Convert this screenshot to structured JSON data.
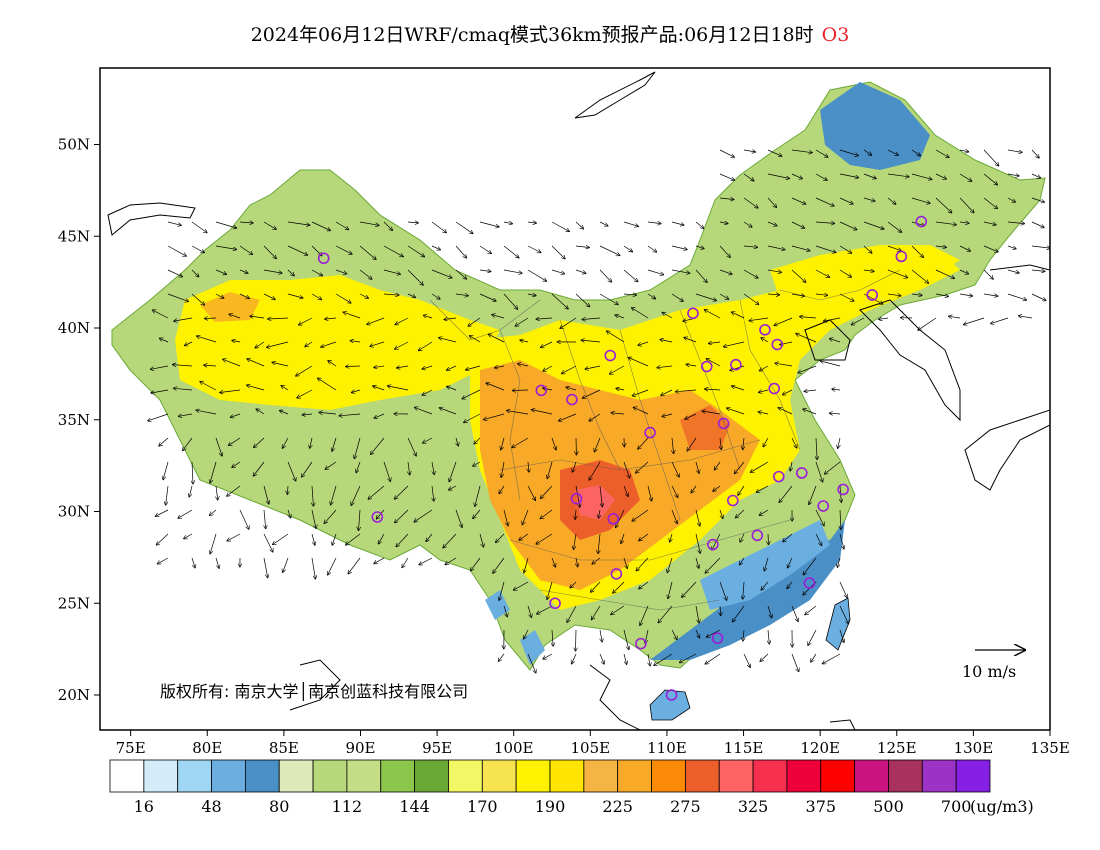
{
  "title": {
    "main": "2024年06月12日WRF/cmaq模式36km预报产品:06月12日18时",
    "species": "O3"
  },
  "axes": {
    "lon_labels": [
      "75E",
      "80E",
      "85E",
      "90E",
      "95E",
      "100E",
      "105E",
      "110E",
      "115E",
      "120E",
      "125E",
      "130E",
      "135E"
    ],
    "lat_labels": [
      "20N",
      "25N",
      "30N",
      "35N",
      "40N",
      "45N",
      "50N"
    ]
  },
  "wind_scale": {
    "label": "10 m/s"
  },
  "copyright": "版权所有: 南京大学│南京创蓝科技有限公司",
  "colorbar": {
    "colors": [
      "#ffffff",
      "#d2ecfa",
      "#9fd6f3",
      "#6bafe0",
      "#4a8fc6",
      "#dfe8b8",
      "#b6d77a",
      "#c3de85",
      "#8cc64d",
      "#6aa936",
      "#f2f865",
      "#f6e350",
      "#fff200",
      "#ffe400",
      "#f6b445",
      "#f8a928",
      "#fb8a08",
      "#ed5f2a",
      "#fc6464",
      "#f62f4f",
      "#ee003a",
      "#fe0000",
      "#cb1380",
      "#a8325d",
      "#9d32c6",
      "#8620e4"
    ],
    "labels": [
      "16",
      "48",
      "80",
      "112",
      "144",
      "170",
      "190",
      "225",
      "275",
      "325",
      "375",
      "500",
      "700"
    ],
    "unit": "(ug/m3)"
  },
  "stations": [
    {
      "lon": 87.6,
      "lat": 43.8
    },
    {
      "lon": 91.1,
      "lat": 29.7
    },
    {
      "lon": 101.8,
      "lat": 36.6
    },
    {
      "lon": 103.8,
      "lat": 36.1
    },
    {
      "lon": 106.3,
      "lat": 38.5
    },
    {
      "lon": 104.1,
      "lat": 30.7
    },
    {
      "lon": 106.5,
      "lat": 29.6
    },
    {
      "lon": 106.7,
      "lat": 26.6
    },
    {
      "lon": 102.7,
      "lat": 25.0
    },
    {
      "lon": 108.3,
      "lat": 22.8
    },
    {
      "lon": 110.3,
      "lat": 20.0
    },
    {
      "lon": 113.3,
      "lat": 23.1
    },
    {
      "lon": 113.0,
      "lat": 28.2
    },
    {
      "lon": 114.3,
      "lat": 30.6
    },
    {
      "lon": 115.9,
      "lat": 28.7
    },
    {
      "lon": 119.3,
      "lat": 26.1
    },
    {
      "lon": 120.2,
      "lat": 30.3
    },
    {
      "lon": 121.5,
      "lat": 31.2
    },
    {
      "lon": 118.8,
      "lat": 32.1
    },
    {
      "lon": 117.3,
      "lat": 31.9
    },
    {
      "lon": 113.7,
      "lat": 34.8
    },
    {
      "lon": 117.0,
      "lat": 36.7
    },
    {
      "lon": 114.5,
      "lat": 38.0
    },
    {
      "lon": 112.6,
      "lat": 37.9
    },
    {
      "lon": 108.9,
      "lat": 34.3
    },
    {
      "lon": 116.4,
      "lat": 39.9
    },
    {
      "lon": 117.2,
      "lat": 39.1
    },
    {
      "lon": 111.7,
      "lat": 40.8
    },
    {
      "lon": 123.4,
      "lat": 41.8
    },
    {
      "lon": 125.3,
      "lat": 43.9
    },
    {
      "lon": 126.6,
      "lat": 45.8
    }
  ]
}
